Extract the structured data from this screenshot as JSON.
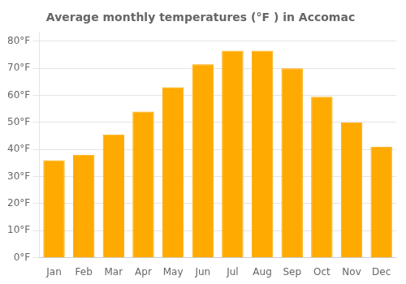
{
  "chart_data": {
    "type": "bar",
    "title": "Average monthly temperatures (°F ) in Accomac",
    "categories": [
      "Jan",
      "Feb",
      "Mar",
      "Apr",
      "May",
      "Jun",
      "Jul",
      "Aug",
      "Sep",
      "Oct",
      "Nov",
      "Dec"
    ],
    "values": [
      36,
      38,
      45.5,
      54,
      63,
      71.5,
      76.5,
      76.5,
      70,
      59.5,
      50,
      41
    ],
    "color": "#FFAA00",
    "ylim": [
      0,
      83
    ],
    "yticks": [
      {
        "value": 0,
        "label": "0°F"
      },
      {
        "value": 10,
        "label": "10°F"
      },
      {
        "value": 20,
        "label": "20°F"
      },
      {
        "value": 30,
        "label": "30°F"
      },
      {
        "value": 40,
        "label": "40°F"
      },
      {
        "value": 50,
        "label": "50°F"
      },
      {
        "value": 60,
        "label": "60°F"
      },
      {
        "value": 70,
        "label": "70°F"
      },
      {
        "value": 80,
        "label": "80°F"
      }
    ],
    "grid": true
  }
}
